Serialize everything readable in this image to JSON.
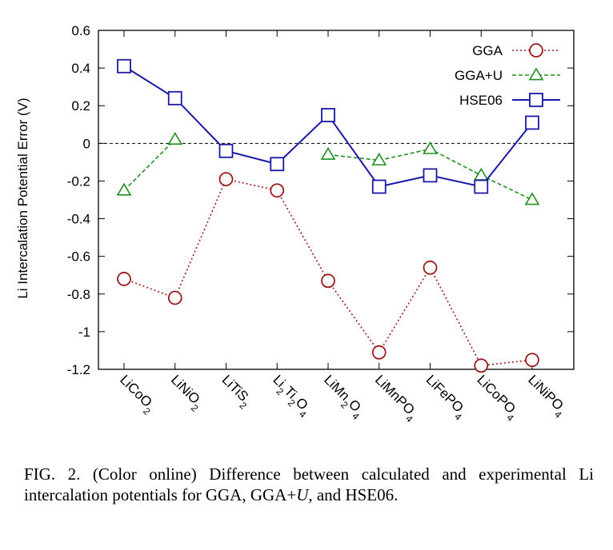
{
  "colors": {
    "GGA": "#9b1c1c",
    "GGA+U": "#1f8f1f",
    "HSE06": "#1a1aa6",
    "zero_line": "#000000"
  },
  "chart_data": {
    "type": "line",
    "xlabel": "",
    "ylabel": "Li Intercalation Potential Error (V)",
    "ylim": [
      -1.2,
      0.6
    ],
    "yticks": [
      "0.6",
      "0.4",
      "0.2",
      "0",
      "-0.2",
      "-0.4",
      "-0.6",
      "-0.8",
      "-1",
      "-1.2"
    ],
    "ytick_values": [
      0.6,
      0.4,
      0.2,
      0,
      -0.2,
      -0.4,
      -0.6,
      -0.8,
      -1.0,
      -1.2
    ],
    "categories": [
      {
        "base": "LiCoO",
        "sub": "2",
        "parts": [
          [
            "LiCoO",
            false
          ],
          [
            "2",
            true
          ]
        ]
      },
      {
        "base": "LiNiO",
        "sub": "2",
        "parts": [
          [
            "LiNiO",
            false
          ],
          [
            "2",
            true
          ]
        ]
      },
      {
        "base": "LiTiS",
        "sub": "2",
        "parts": [
          [
            "LiTiS",
            false
          ],
          [
            "2",
            true
          ]
        ]
      },
      {
        "base": "Li2Ti2O4",
        "parts": [
          [
            "Li",
            false
          ],
          [
            "2",
            true
          ],
          [
            "Ti",
            false
          ],
          [
            "2",
            true
          ],
          [
            "O",
            false
          ],
          [
            "4",
            true
          ]
        ]
      },
      {
        "base": "LiMn2O4",
        "parts": [
          [
            "LiMn",
            false
          ],
          [
            "2",
            true
          ],
          [
            "O",
            false
          ],
          [
            "4",
            true
          ]
        ]
      },
      {
        "base": "LiMnPO4",
        "parts": [
          [
            "LiMnPO",
            false
          ],
          [
            "4",
            true
          ]
        ]
      },
      {
        "base": "LiFePO4",
        "parts": [
          [
            "LiFePO",
            false
          ],
          [
            "4",
            true
          ]
        ]
      },
      {
        "base": "LiCoPO4",
        "parts": [
          [
            "LiCoPO",
            false
          ],
          [
            "4",
            true
          ]
        ]
      },
      {
        "base": "LiNiPO4",
        "parts": [
          [
            "LiNiPO",
            false
          ],
          [
            "4",
            true
          ]
        ]
      }
    ],
    "series": [
      {
        "name": "GGA",
        "marker": "circle",
        "line": "dotted",
        "values": [
          -0.72,
          -0.82,
          -0.19,
          -0.25,
          -0.73,
          -1.11,
          -0.66,
          -1.18,
          -1.15
        ]
      },
      {
        "name": "GGA+U",
        "marker": "triangle",
        "line": "dashed",
        "values": [
          -0.25,
          0.02,
          null,
          null,
          -0.06,
          -0.09,
          -0.03,
          -0.17,
          -0.3
        ]
      },
      {
        "name": "HSE06",
        "marker": "square",
        "line": "solid",
        "values": [
          0.41,
          0.24,
          -0.04,
          -0.11,
          0.15,
          -0.23,
          -0.17,
          -0.23,
          0.11
        ]
      }
    ],
    "zero_line": true,
    "grid": false,
    "legend": {
      "placement": "top-right",
      "entries": [
        "GGA",
        "GGA+U",
        "HSE06"
      ]
    }
  },
  "caption": {
    "text": "FIG. 2. (Color online) Difference between calculated and experimental Li intercalation potentials for GGA, GGA+",
    "italic": "U",
    "tail": ", and HSE06."
  }
}
